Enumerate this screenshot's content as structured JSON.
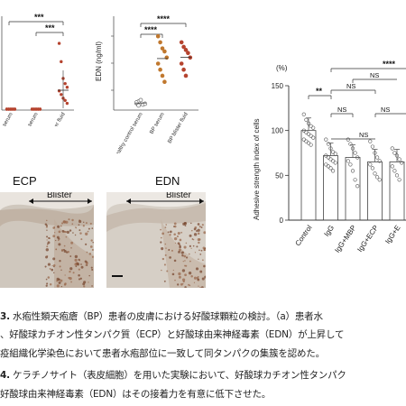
{
  "chart_data": [
    {
      "type": "scatter",
      "title": "",
      "ylabel": "",
      "categories": [
        "control serum",
        "BP serum",
        "BP blister fluid"
      ],
      "series": [
        {
          "values": [
            [
              0,
              0,
              0,
              0,
              0,
              0,
              0,
              0,
              0,
              0
            ],
            [
              0,
              0,
              0,
              0,
              0,
              0,
              0,
              0,
              0,
              0
            ],
            [
              0.9,
              0.65,
              0.42,
              0.35,
              0.3,
              0.25,
              0.2,
              0.15,
              0.12,
              0.08
            ]
          ]
        }
      ],
      "annotations": [
        "***",
        "***"
      ]
    },
    {
      "type": "scatter",
      "ylabel": "EDN  (ng/ml)",
      "categories": [
        "Healthy control serum",
        "BP serum",
        "BP blister fluid"
      ],
      "series": [
        {
          "values": [
            [
              20,
              25,
              30,
              15,
              18,
              22,
              12
            ],
            [
              240,
              220,
              200,
              190,
              170,
              150,
              130,
              110,
              90
            ],
            [
              220,
              205,
              195,
              185,
              170,
              150,
              130,
              110
            ]
          ]
        }
      ],
      "annotations": [
        "****",
        "****"
      ]
    },
    {
      "type": "bar",
      "ylabel": "Adhesive strength index of cells",
      "yunit": "(%)",
      "ylim": [
        0,
        150
      ],
      "yticks": [
        "0",
        "50",
        "100",
        "150"
      ],
      "categories": [
        "Control",
        "IgG",
        "IgG+MBP",
        "IgG+ECP",
        "IgG+E"
      ],
      "values": [
        100,
        72,
        70,
        65,
        65
      ],
      "points": [
        [
          118,
          112,
          108,
          105,
          103,
          100,
          98,
          96,
          94,
          92,
          90,
          88,
          86,
          84
        ],
        [
          90,
          85,
          80,
          76,
          74,
          72,
          70,
          68,
          66,
          64,
          62,
          60,
          58,
          55
        ],
        [
          90,
          85,
          80,
          75,
          70,
          66,
          62,
          55,
          45,
          38
        ],
        [
          88,
          82,
          75,
          70,
          66,
          62,
          58,
          52,
          48,
          45
        ],
        [
          80,
          75,
          72,
          68,
          64,
          60,
          55,
          50,
          45
        ]
      ],
      "significance": [
        "**",
        "NS",
        "NS",
        "NS",
        "****",
        "NS",
        "NS"
      ]
    }
  ],
  "figure": {
    "ecp_title": "ECP",
    "edn_title": "EDN",
    "blister_label_1": "Blister",
    "blister_label_2": "Blister"
  },
  "caption": {
    "line1_num": "3.",
    "line1": " 水疱性類天疱瘡（BP）患者の皮膚における好酸球顆粒の検討。（a）患者水",
    "line2": "、好酸球カチオン性タンパク質（ECP）と好酸球由来神経毒素（EDN）が上昇して",
    "line3": "疫組織化学染色において患者水疱部位に一致して同タンパクの集簇を認めた。",
    "line4_num": "4.",
    "line4": " ケラチノサイト（表皮細胞）を用いた実験において、好酸球カチオン性タンパク",
    "line5": "好酸球由来神経毒素（EDN）はその接着力を有意に低下させた。"
  },
  "colors": {
    "dot": "#b5432e",
    "dot_light": "#e8a48c",
    "bar_outline": "#444444",
    "tissue_bg": "#d6cfc6"
  }
}
